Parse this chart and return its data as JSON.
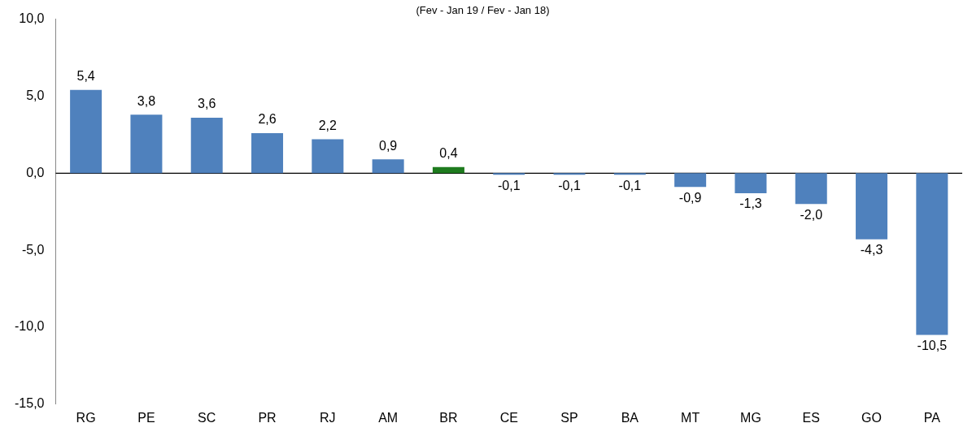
{
  "chart_data": {
    "type": "bar",
    "title": "(Fev - Jan 19 / Fev - Jan 18)",
    "categories": [
      "RG",
      "PE",
      "SC",
      "PR",
      "RJ",
      "AM",
      "BR",
      "CE",
      "SP",
      "BA",
      "MT",
      "MG",
      "ES",
      "GO",
      "PA"
    ],
    "values": [
      5.4,
      3.8,
      3.6,
      2.6,
      2.2,
      0.9,
      0.4,
      -0.1,
      -0.1,
      -0.1,
      -0.9,
      -1.3,
      -2.0,
      -4.3,
      -10.5
    ],
    "colors": [
      "#4f81bd",
      "#4f81bd",
      "#4f81bd",
      "#4f81bd",
      "#4f81bd",
      "#4f81bd",
      "#1e7b1e",
      "#4f81bd",
      "#4f81bd",
      "#4f81bd",
      "#4f81bd",
      "#4f81bd",
      "#4f81bd",
      "#4f81bd",
      "#4f81bd"
    ],
    "value_labels": [
      "5,4",
      "3,8",
      "3,6",
      "2,6",
      "2,2",
      "0,9",
      "0,4",
      "-0,1",
      "-0,1",
      "-0,1",
      "-0,9",
      "-1,3",
      "-2,0",
      "-4,3",
      "-10,5"
    ],
    "ylim": [
      -15,
      10
    ],
    "yticks": [
      {
        "value": -15,
        "label": "-15,0"
      },
      {
        "value": -10,
        "label": "-10,0"
      },
      {
        "value": -5,
        "label": "-5,0"
      },
      {
        "value": 0,
        "label": "0,0"
      },
      {
        "value": 5,
        "label": "5,0"
      },
      {
        "value": 10,
        "label": "10,0"
      }
    ],
    "ref_lines": [
      {
        "axis": "y",
        "value": 0,
        "color": "#000000"
      }
    ],
    "grid": false,
    "legend": false
  }
}
